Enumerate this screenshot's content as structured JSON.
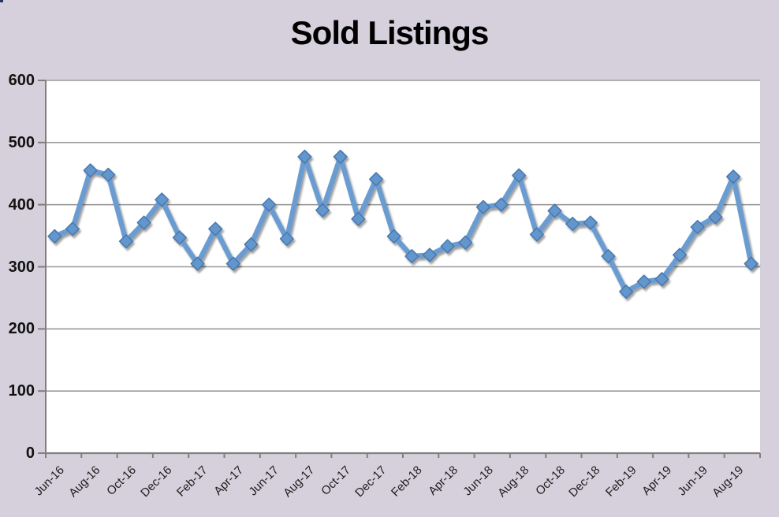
{
  "chart_data": {
    "type": "line",
    "title": "Sold Listings",
    "categories": [
      "Jun-16",
      "Jul-16",
      "Aug-16",
      "Sep-16",
      "Oct-16",
      "Nov-16",
      "Dec-16",
      "Jan-17",
      "Feb-17",
      "Mar-17",
      "Apr-17",
      "May-17",
      "Jun-17",
      "Jul-17",
      "Aug-17",
      "Sep-17",
      "Oct-17",
      "Nov-17",
      "Dec-17",
      "Jan-18",
      "Feb-18",
      "Mar-18",
      "Apr-18",
      "May-18",
      "Jun-18",
      "Jul-18",
      "Aug-18",
      "Sep-18",
      "Oct-18",
      "Nov-18",
      "Dec-18",
      "Jan-19",
      "Feb-19",
      "Mar-19",
      "Apr-19",
      "May-19",
      "Jun-19",
      "Jul-19",
      "Aug-19",
      "Sep-19"
    ],
    "values": [
      349,
      361,
      455,
      448,
      341,
      371,
      408,
      347,
      305,
      361,
      305,
      336,
      400,
      345,
      477,
      391,
      477,
      377,
      441,
      349,
      317,
      319,
      333,
      339,
      396,
      400,
      447,
      352,
      390,
      369,
      371,
      317,
      260,
      276,
      280,
      319,
      364,
      380,
      445,
      305
    ],
    "xtick_labels": [
      "Jun-16",
      "Aug-16",
      "Oct-16",
      "Dec-16",
      "Feb-17",
      "Apr-17",
      "Jun-17",
      "Aug-17",
      "Oct-17",
      "Dec-17",
      "Feb-18",
      "Apr-18",
      "Jun-18",
      "Aug-18",
      "Oct-18",
      "Dec-18",
      "Feb-19",
      "Apr-19",
      "Jun-19",
      "Aug-19"
    ],
    "xtick_every": 2,
    "yticks": [
      0,
      100,
      200,
      300,
      400,
      500,
      600
    ],
    "ylim": [
      0,
      600
    ],
    "xlabel": "",
    "ylabel": "",
    "legend": "none",
    "grid": "horizontal",
    "marker": "diamond"
  },
  "colors": {
    "background": "#D5D0DC",
    "plot_background": "#FFFFFF",
    "gridline": "#9B9B9B",
    "axis": "#7F7F7F",
    "line": "#6B9CD1",
    "marker_fill": "#6496CC",
    "marker_stroke": "#4678AE",
    "title_color": "#000000",
    "tick_label_color": "#1C1C1C"
  }
}
